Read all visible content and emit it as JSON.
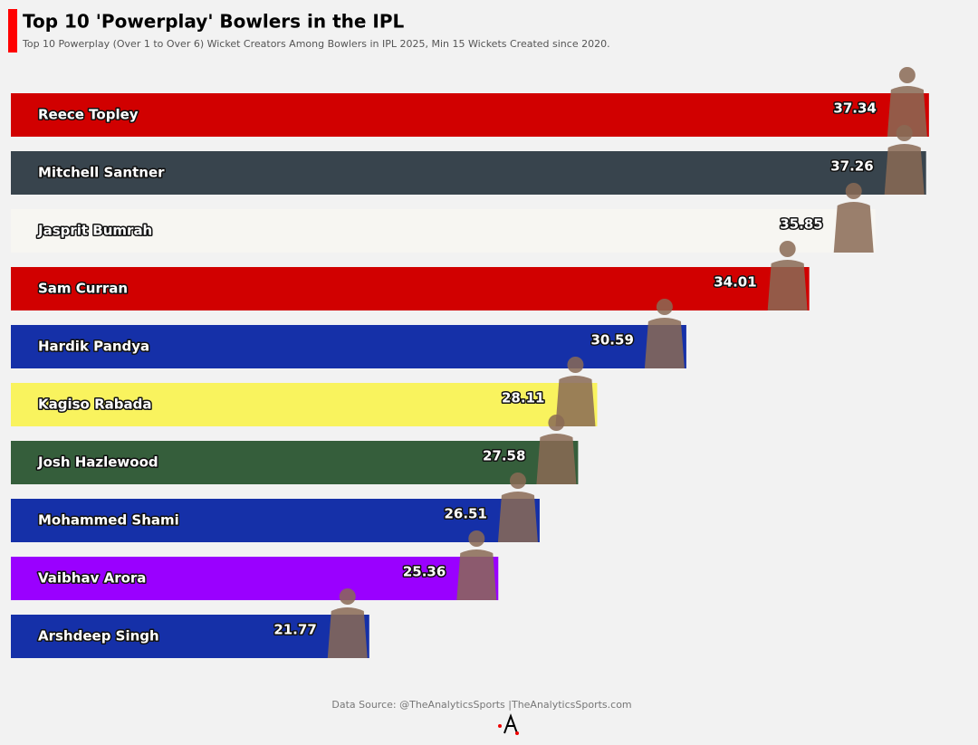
{
  "chart_data": {
    "type": "bar",
    "orientation": "horizontal",
    "title": "Top 10 'Powerplay' Bowlers in the IPL",
    "subtitle": "Top 10 Powerplay (Over 1 to Over 6) Wicket Creators Among Bowlers in IPL 2025, Min 15 Wickets Created since 2020.",
    "source": "Data Source: @TheAnalyticsSports |TheAnalyticsSports.com",
    "categories": [
      "Reece Topley",
      "Mitchell Santner",
      "Jasprit Bumrah",
      "Sam Curran",
      "Hardik Pandya",
      "Kagiso Rabada",
      "Josh Hazlewood",
      "Mohammed Shami",
      "Vaibhav Arora",
      "Arshdeep Singh"
    ],
    "values": [
      37.34,
      37.26,
      35.85,
      34.01,
      30.59,
      28.11,
      27.58,
      26.51,
      25.36,
      21.77
    ],
    "colors": [
      "#d10000",
      "#38444d",
      "#f7f6f2",
      "#d10000",
      "#1530a8",
      "#f9f35e",
      "#355e3b",
      "#1530a8",
      "#9a00ff",
      "#1530a8"
    ],
    "xlim": [
      11.8,
      38.2
    ]
  }
}
